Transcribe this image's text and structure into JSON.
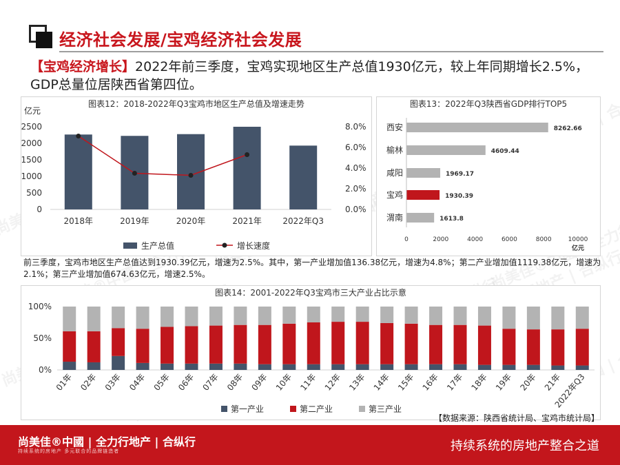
{
  "header": {
    "title": "经济社会发展/宝鸡经济社会发展",
    "intro_tag": "【宝鸡经济增长】",
    "intro_text": "2022年前三季度，宝鸡实现地区生产总值1930亿元，较上年同期增长2.5%，GDP总量位居陕西省第四位。"
  },
  "description": "前三季度，宝鸡市地区生产总值达到1930.39亿元，增速为2.5%。其中，第一产业增加值136.38亿元，增速为4.8%；第二产业增加值1119.38亿元，增速为2.1%；第三产业增加值674.63亿元，增速2.5%。",
  "source": "【数据来源：陕西省统计局、宝鸡市统计局】",
  "footer": {
    "logo_text": "尚美佳®中國 | 全力行地产 | 合纵行",
    "sub_text": "持续系统的房地产   多元联合的品牌链造者",
    "slogan": "持续系统的房地产整合之道"
  },
  "watermark": "尚美佳®中國 | 全力行地产 | 合纵行",
  "colors": {
    "brand_red": "#c8161d",
    "navy": "#44546a",
    "red_series": "#c0161c",
    "gray_series": "#b3b3b3",
    "line": "#c0161c"
  },
  "chart_data": [
    {
      "type": "bar",
      "title": "图表12：2018-2022年Q3宝鸡市地区生产总值及增速走势",
      "ylabel": "亿元",
      "categories": [
        "2018年",
        "2019年",
        "2020年",
        "2021年",
        "2022年Q3"
      ],
      "ylim": [
        0,
        2500
      ],
      "yticks": [
        "0",
        "500",
        "1000",
        "1500",
        "2000",
        "2500"
      ],
      "y2lim": [
        0,
        8
      ],
      "y2ticks": [
        "0.0%",
        "2.0%",
        "4.0%",
        "6.0%",
        "8.0%"
      ],
      "series": [
        {
          "name": "生产总值",
          "type": "bar",
          "values": [
            2265,
            2224,
            2277,
            2500,
            1930
          ]
        },
        {
          "name": "增长速度",
          "type": "line",
          "values": [
            7.1,
            3.5,
            3.3,
            5.3,
            null
          ]
        }
      ]
    },
    {
      "type": "bar",
      "orientation": "horizontal",
      "title": "图表13：2022年Q3陕西省GDP排行TOP5",
      "unit": "亿元",
      "categories": [
        "西安",
        "榆林",
        "咸阳",
        "宝鸡",
        "渭南"
      ],
      "values": [
        8262.66,
        4609.44,
        1969.17,
        1930.39,
        1613.8
      ],
      "value_labels": [
        "8262.66",
        "4609.44",
        "1969.17",
        "1930.39",
        "1613.8"
      ],
      "highlight": "宝鸡",
      "xlim": [
        0,
        10000
      ],
      "xticks": [
        "0",
        "2000",
        "4000",
        "6000",
        "8000",
        "10000"
      ]
    },
    {
      "type": "bar",
      "stacked": true,
      "title": "图表14：2001-2022年Q3宝鸡市三大产业占比示意",
      "categories": [
        "01年",
        "02年",
        "03年",
        "04年",
        "05年",
        "06年",
        "07年",
        "08年",
        "09年",
        "10年",
        "11年",
        "12年",
        "13年",
        "14年",
        "15年",
        "16年",
        "17年",
        "18年",
        "19年",
        "20年",
        "21年",
        "2022年Q3"
      ],
      "ylim": [
        0,
        100
      ],
      "yticks": [
        "0%",
        "50%",
        "100%"
      ],
      "series": [
        {
          "name": "第一产业",
          "values": [
            13,
            12,
            22,
            11,
            10,
            10,
            10,
            10,
            9,
            9,
            9,
            9,
            9,
            9,
            9,
            9,
            9,
            8,
            8,
            8,
            7,
            7
          ]
        },
        {
          "name": "第二产业",
          "values": [
            48,
            49,
            44,
            54,
            58,
            59,
            60,
            61,
            62,
            64,
            66,
            67,
            67,
            65,
            64,
            62,
            62,
            62,
            57,
            56,
            57,
            58
          ]
        },
        {
          "name": "第三产业",
          "values": [
            39,
            39,
            34,
            35,
            32,
            31,
            30,
            29,
            29,
            27,
            25,
            24,
            24,
            26,
            27,
            29,
            29,
            30,
            35,
            36,
            36,
            35
          ]
        }
      ]
    }
  ]
}
